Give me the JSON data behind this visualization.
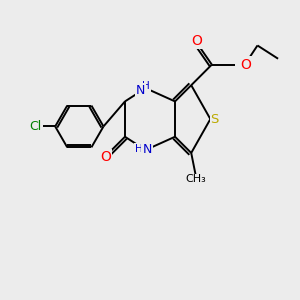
{
  "background_color": "#ececec",
  "bond_color": "#000000",
  "atom_colors": {
    "Cl": "#008000",
    "N": "#0000cc",
    "O": "#ff0000",
    "S": "#bbaa00",
    "C": "#000000",
    "H": "#000000"
  },
  "figsize": [
    3.0,
    3.0
  ],
  "dpi": 100
}
